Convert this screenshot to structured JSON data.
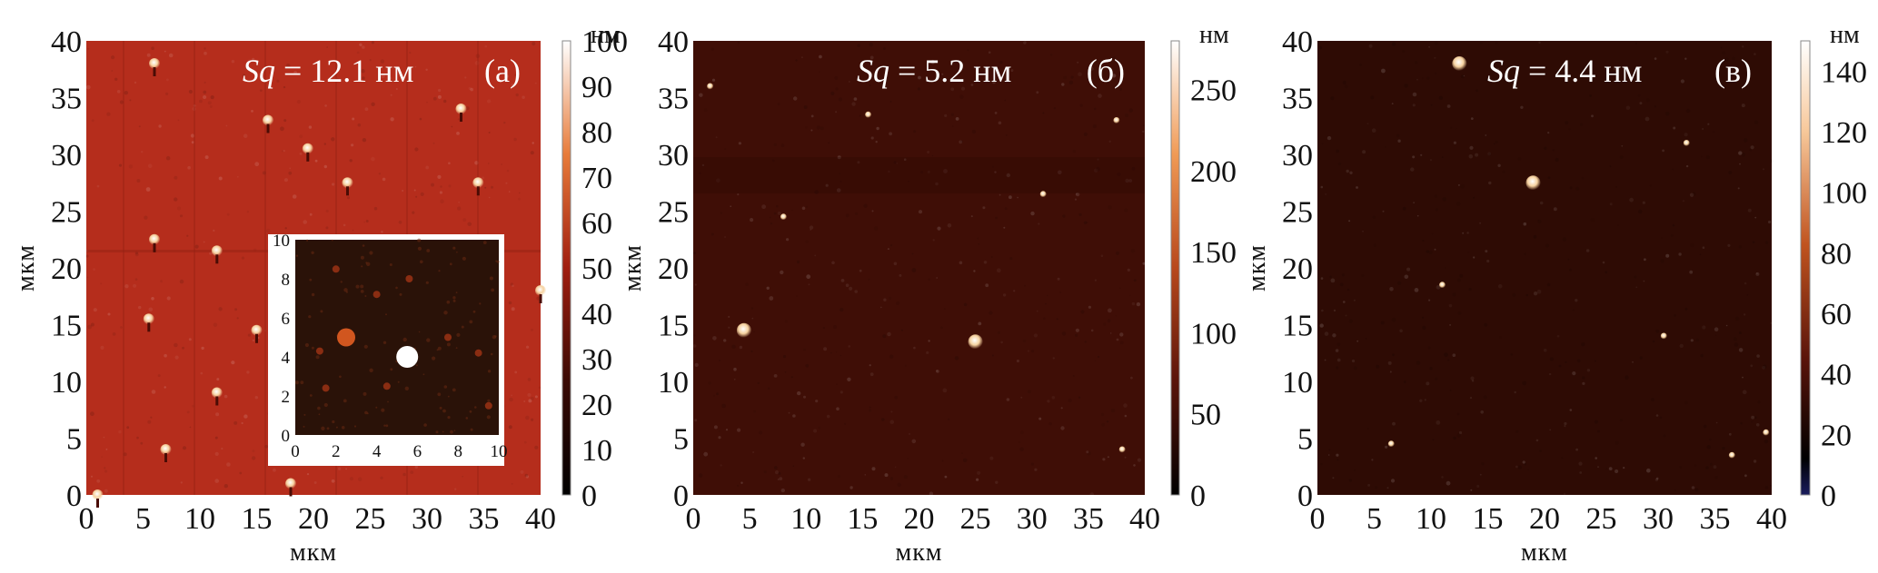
{
  "chart_data": [
    {
      "type": "heatmap",
      "panel_label": "(а)",
      "sq_prefix": "Sq",
      "sq_value": " = 12.1 нм",
      "xlabel": "мкм",
      "ylabel": "мкм",
      "xlim": [
        0,
        40
      ],
      "ylim": [
        0,
        40
      ],
      "xticks": [
        "0",
        "5",
        "10",
        "15",
        "20",
        "25",
        "30",
        "35",
        "40"
      ],
      "yticks": [
        "0",
        "5",
        "10",
        "15",
        "20",
        "25",
        "30",
        "35",
        "40"
      ],
      "colorbar": {
        "unit": "нм",
        "range": [
          0,
          100
        ],
        "ticks": [
          "0",
          "10",
          "20",
          "30",
          "40",
          "50",
          "60",
          "70",
          "80",
          "90",
          "100"
        ]
      },
      "map_colors": {
        "background": "#b52d1c",
        "grain": "#f2c48a"
      },
      "features": [
        {
          "x": 6.0,
          "y": 38.0
        },
        {
          "x": 16.0,
          "y": 33.0
        },
        {
          "x": 33.0,
          "y": 34.0
        },
        {
          "x": 19.5,
          "y": 30.5
        },
        {
          "x": 23.0,
          "y": 27.5
        },
        {
          "x": 34.5,
          "y": 27.5
        },
        {
          "x": 6.0,
          "y": 22.5
        },
        {
          "x": 11.5,
          "y": 21.5
        },
        {
          "x": 40.0,
          "y": 18.0
        },
        {
          "x": 5.5,
          "y": 15.5
        },
        {
          "x": 15.0,
          "y": 14.5
        },
        {
          "x": 11.5,
          "y": 9.0
        },
        {
          "x": 7.0,
          "y": 4.0
        },
        {
          "x": 18.0,
          "y": 1.0
        },
        {
          "x": 1.0,
          "y": 0.0
        }
      ],
      "inset": {
        "xlim": [
          0,
          10
        ],
        "ylim": [
          0,
          10
        ],
        "xticks": [
          "0",
          "2",
          "4",
          "6",
          "8",
          "10"
        ],
        "yticks": [
          "0",
          "2",
          "4",
          "6",
          "8",
          "10"
        ],
        "background": "#2a1208",
        "features": [
          {
            "x": 2.5,
            "y": 5.0
          },
          {
            "x": 5.5,
            "y": 4.0
          },
          {
            "x": 1.2,
            "y": 4.3
          },
          {
            "x": 1.5,
            "y": 2.4
          },
          {
            "x": 4.0,
            "y": 7.2
          },
          {
            "x": 2.0,
            "y": 8.5
          },
          {
            "x": 7.5,
            "y": 5.0
          },
          {
            "x": 9.0,
            "y": 4.2
          },
          {
            "x": 4.5,
            "y": 2.5
          },
          {
            "x": 9.5,
            "y": 1.5
          },
          {
            "x": 5.6,
            "y": 8.0
          }
        ]
      }
    },
    {
      "type": "heatmap",
      "panel_label": "(б)",
      "sq_prefix": "Sq",
      "sq_value": " = 5.2 нм",
      "xlabel": "мкм",
      "ylabel": "мкм",
      "xlim": [
        0,
        40
      ],
      "ylim": [
        0,
        40
      ],
      "xticks": [
        "0",
        "5",
        "10",
        "15",
        "20",
        "25",
        "30",
        "35",
        "40"
      ],
      "yticks": [
        "0",
        "5",
        "10",
        "15",
        "20",
        "25",
        "30",
        "35",
        "40"
      ],
      "colorbar": {
        "unit": "нм",
        "range": [
          0,
          280
        ],
        "ticks": [
          "0",
          "50",
          "100",
          "150",
          "200",
          "250"
        ]
      },
      "map_colors": {
        "background": "#3f0e06",
        "grain": "#f6dfbe"
      },
      "features": [
        {
          "x": 4.5,
          "y": 14.5
        },
        {
          "x": 25.0,
          "y": 13.5
        },
        {
          "x": 15.5,
          "y": 33.5
        },
        {
          "x": 8.0,
          "y": 24.5
        },
        {
          "x": 31.0,
          "y": 26.5
        },
        {
          "x": 1.5,
          "y": 36.0
        },
        {
          "x": 38.0,
          "y": 4.0
        },
        {
          "x": 37.5,
          "y": 33.0
        }
      ]
    },
    {
      "type": "heatmap",
      "panel_label": "(в)",
      "sq_prefix": "Sq",
      "sq_value": " = 4.4 нм",
      "xlabel": "мкм",
      "ylabel": "мкм",
      "xlim": [
        0,
        40
      ],
      "ylim": [
        0,
        40
      ],
      "xticks": [
        "0",
        "5",
        "10",
        "15",
        "20",
        "25",
        "30",
        "35",
        "40"
      ],
      "yticks": [
        "0",
        "5",
        "10",
        "15",
        "20",
        "25",
        "30",
        "35",
        "40"
      ],
      "colorbar": {
        "unit": "нм",
        "range": [
          0,
          150
        ],
        "ticks": [
          "0",
          "20",
          "40",
          "60",
          "80",
          "100",
          "120",
          "140"
        ]
      },
      "map_colors": {
        "background": "#2e0b04",
        "grain": "#f8ecd6"
      },
      "features": [
        {
          "x": 12.5,
          "y": 38.0
        },
        {
          "x": 19.0,
          "y": 27.5
        },
        {
          "x": 32.5,
          "y": 31.0
        },
        {
          "x": 11.0,
          "y": 18.5
        },
        {
          "x": 6.5,
          "y": 4.5
        },
        {
          "x": 36.5,
          "y": 3.5
        },
        {
          "x": 30.5,
          "y": 14.0
        },
        {
          "x": 39.5,
          "y": 5.5
        }
      ]
    }
  ]
}
